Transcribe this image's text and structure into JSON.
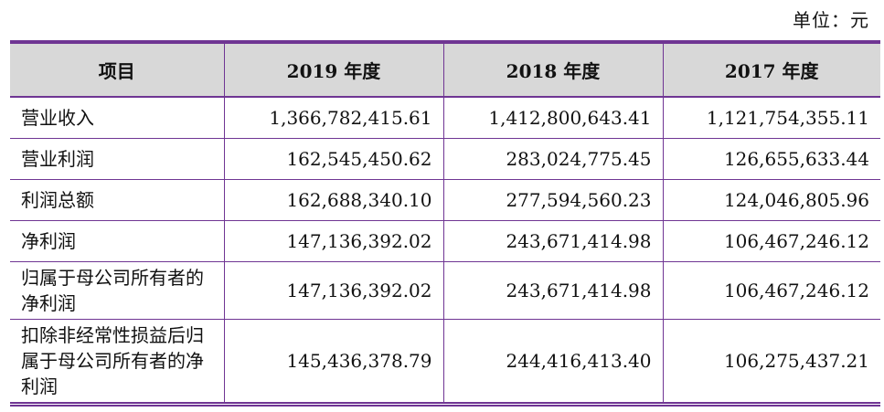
{
  "unit_label": "单位：元",
  "header": [
    "项目",
    "2019 年度",
    "2018 年度",
    "2017 年度"
  ],
  "rows": [
    {
      "label": "营业收入",
      "v2019": "1,366,782,415.61",
      "v2018": "1,412,800,643.41",
      "v2017": "1,121,754,355.11"
    },
    {
      "label": "营业利润",
      "v2019": "162,545,450.62",
      "v2018": "283,024,775.45",
      "v2017": "126,655,633.44"
    },
    {
      "label": "利润总额",
      "v2019": "162,688,340.10",
      "v2018": "277,594,560.23",
      "v2017": "124,046,805.96"
    },
    {
      "label": "净利润",
      "v2019": "147,136,392.02",
      "v2018": "243,671,414.98",
      "v2017": "106,467,246.12"
    },
    {
      "label": "归属于母公司所有者的净利润",
      "v2019": "147,136,392.02",
      "v2018": "243,671,414.98",
      "v2017": "106,467,246.12"
    },
    {
      "label": "扣除非经常性损益后归属于母公司所有者的净利润",
      "v2019": "145,436,378.79",
      "v2018": "244,416,413.40",
      "v2017": "106,275,437.21"
    }
  ],
  "colors": {
    "rule": "#6f3593",
    "header_bg": "#d8d8d8"
  }
}
